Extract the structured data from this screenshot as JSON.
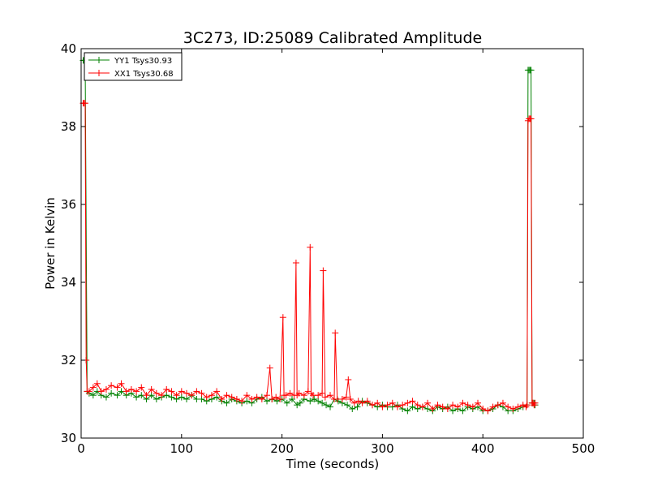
{
  "chart_data": {
    "type": "line",
    "title": "3C273, ID:25089 Calibrated Amplitude",
    "xlabel": "Time (seconds)",
    "ylabel": "Power in Kelvin",
    "xlim": [
      0,
      500
    ],
    "ylim": [
      30,
      40
    ],
    "xticks": [
      0,
      100,
      200,
      300,
      400,
      500
    ],
    "yticks": [
      30,
      32,
      34,
      36,
      38,
      40
    ],
    "grid": false,
    "legend_position": "top-left",
    "colors": {
      "yy1": "#008000",
      "xx1": "#ff0000"
    },
    "series": [
      {
        "name": "YY1 Tsys30.93",
        "color": "#008000",
        "x": [
          2,
          3,
          4,
          6,
          8,
          12,
          16,
          20,
          25,
          30,
          36,
          40,
          45,
          50,
          55,
          60,
          65,
          70,
          75,
          80,
          85,
          90,
          95,
          100,
          105,
          110,
          115,
          120,
          125,
          130,
          135,
          140,
          145,
          150,
          155,
          160,
          165,
          170,
          175,
          180,
          185,
          190,
          195,
          200,
          205,
          210,
          215,
          218,
          222,
          228,
          232,
          236,
          240,
          244,
          248,
          252,
          256,
          260,
          265,
          270,
          275,
          280,
          285,
          290,
          295,
          300,
          305,
          310,
          315,
          320,
          325,
          330,
          335,
          340,
          345,
          350,
          355,
          360,
          365,
          370,
          375,
          380,
          385,
          390,
          395,
          400,
          405,
          410,
          415,
          420,
          425,
          430,
          435,
          440,
          444,
          445,
          446,
          447,
          448,
          449,
          450,
          451,
          452
        ],
        "y": [
          39.7,
          39.7,
          39.7,
          31.2,
          31.15,
          31.1,
          31.2,
          31.1,
          31.05,
          31.15,
          31.1,
          31.2,
          31.1,
          31.15,
          31.05,
          31.1,
          31.0,
          31.1,
          31.0,
          31.05,
          31.1,
          31.05,
          31.0,
          31.05,
          31.0,
          31.1,
          31.0,
          31.0,
          30.95,
          31.0,
          31.05,
          30.95,
          30.9,
          31.0,
          30.95,
          30.9,
          30.95,
          30.9,
          31.0,
          31.05,
          30.95,
          31.0,
          30.95,
          31.0,
          30.9,
          31.0,
          30.85,
          30.9,
          31.0,
          30.95,
          31.0,
          30.95,
          30.9,
          30.85,
          30.8,
          31.0,
          30.95,
          30.9,
          30.85,
          30.75,
          30.8,
          30.95,
          30.9,
          30.85,
          30.8,
          30.85,
          30.8,
          30.8,
          30.85,
          30.75,
          30.7,
          30.8,
          30.75,
          30.8,
          30.75,
          30.7,
          30.8,
          30.75,
          30.8,
          30.7,
          30.75,
          30.7,
          30.8,
          30.75,
          30.8,
          30.7,
          30.7,
          30.75,
          30.85,
          30.8,
          30.7,
          30.7,
          30.75,
          30.8,
          30.85,
          39.45,
          39.45,
          39.45,
          39.45,
          30.9,
          30.9,
          30.9,
          30.85
        ]
      },
      {
        "name": "XX1 Tsys30.68",
        "color": "#ff0000",
        "x": [
          2,
          3,
          4,
          5,
          6,
          8,
          12,
          16,
          20,
          25,
          30,
          36,
          40,
          45,
          50,
          55,
          60,
          65,
          70,
          75,
          80,
          85,
          90,
          95,
          100,
          105,
          110,
          115,
          120,
          125,
          130,
          135,
          140,
          145,
          150,
          155,
          160,
          165,
          170,
          175,
          180,
          185,
          188,
          190,
          194,
          198,
          201,
          202,
          204,
          208,
          212,
          214,
          215,
          217,
          222,
          226,
          228,
          229,
          231,
          236,
          240,
          241,
          243,
          248,
          252,
          253,
          255,
          260,
          264,
          266,
          268,
          272,
          276,
          280,
          285,
          290,
          295,
          300,
          305,
          310,
          315,
          320,
          325,
          330,
          335,
          340,
          345,
          350,
          355,
          360,
          365,
          370,
          375,
          380,
          385,
          390,
          395,
          400,
          405,
          410,
          415,
          420,
          425,
          430,
          435,
          440,
          443,
          444,
          445,
          446,
          447,
          448,
          449,
          450,
          451,
          452
        ],
        "y": [
          38.6,
          38.6,
          38.6,
          32.0,
          31.2,
          31.2,
          31.3,
          31.4,
          31.2,
          31.25,
          31.35,
          31.3,
          31.4,
          31.2,
          31.25,
          31.2,
          31.3,
          31.1,
          31.25,
          31.15,
          31.1,
          31.25,
          31.2,
          31.1,
          31.2,
          31.15,
          31.1,
          31.2,
          31.15,
          31.05,
          31.1,
          31.2,
          31.0,
          31.1,
          31.05,
          31.0,
          30.95,
          31.1,
          31.0,
          31.05,
          31.0,
          31.1,
          31.8,
          31.0,
          31.05,
          31.0,
          33.1,
          31.1,
          31.1,
          31.15,
          31.1,
          34.5,
          31.1,
          31.15,
          31.1,
          31.2,
          34.9,
          31.15,
          31.1,
          31.1,
          31.15,
          34.3,
          31.05,
          31.1,
          31.0,
          32.7,
          31.0,
          31.0,
          31.05,
          31.5,
          31.0,
          30.9,
          30.95,
          30.9,
          30.95,
          30.85,
          30.9,
          30.8,
          30.85,
          30.9,
          30.8,
          30.85,
          30.9,
          30.95,
          30.85,
          30.8,
          30.9,
          30.75,
          30.85,
          30.8,
          30.75,
          30.85,
          30.8,
          30.9,
          30.85,
          30.8,
          30.9,
          30.75,
          30.7,
          30.8,
          30.85,
          30.9,
          30.8,
          30.75,
          30.8,
          30.85,
          30.8,
          30.85,
          38.15,
          38.2,
          38.2,
          38.2,
          30.9,
          30.9,
          30.85,
          30.9
        ]
      }
    ]
  }
}
